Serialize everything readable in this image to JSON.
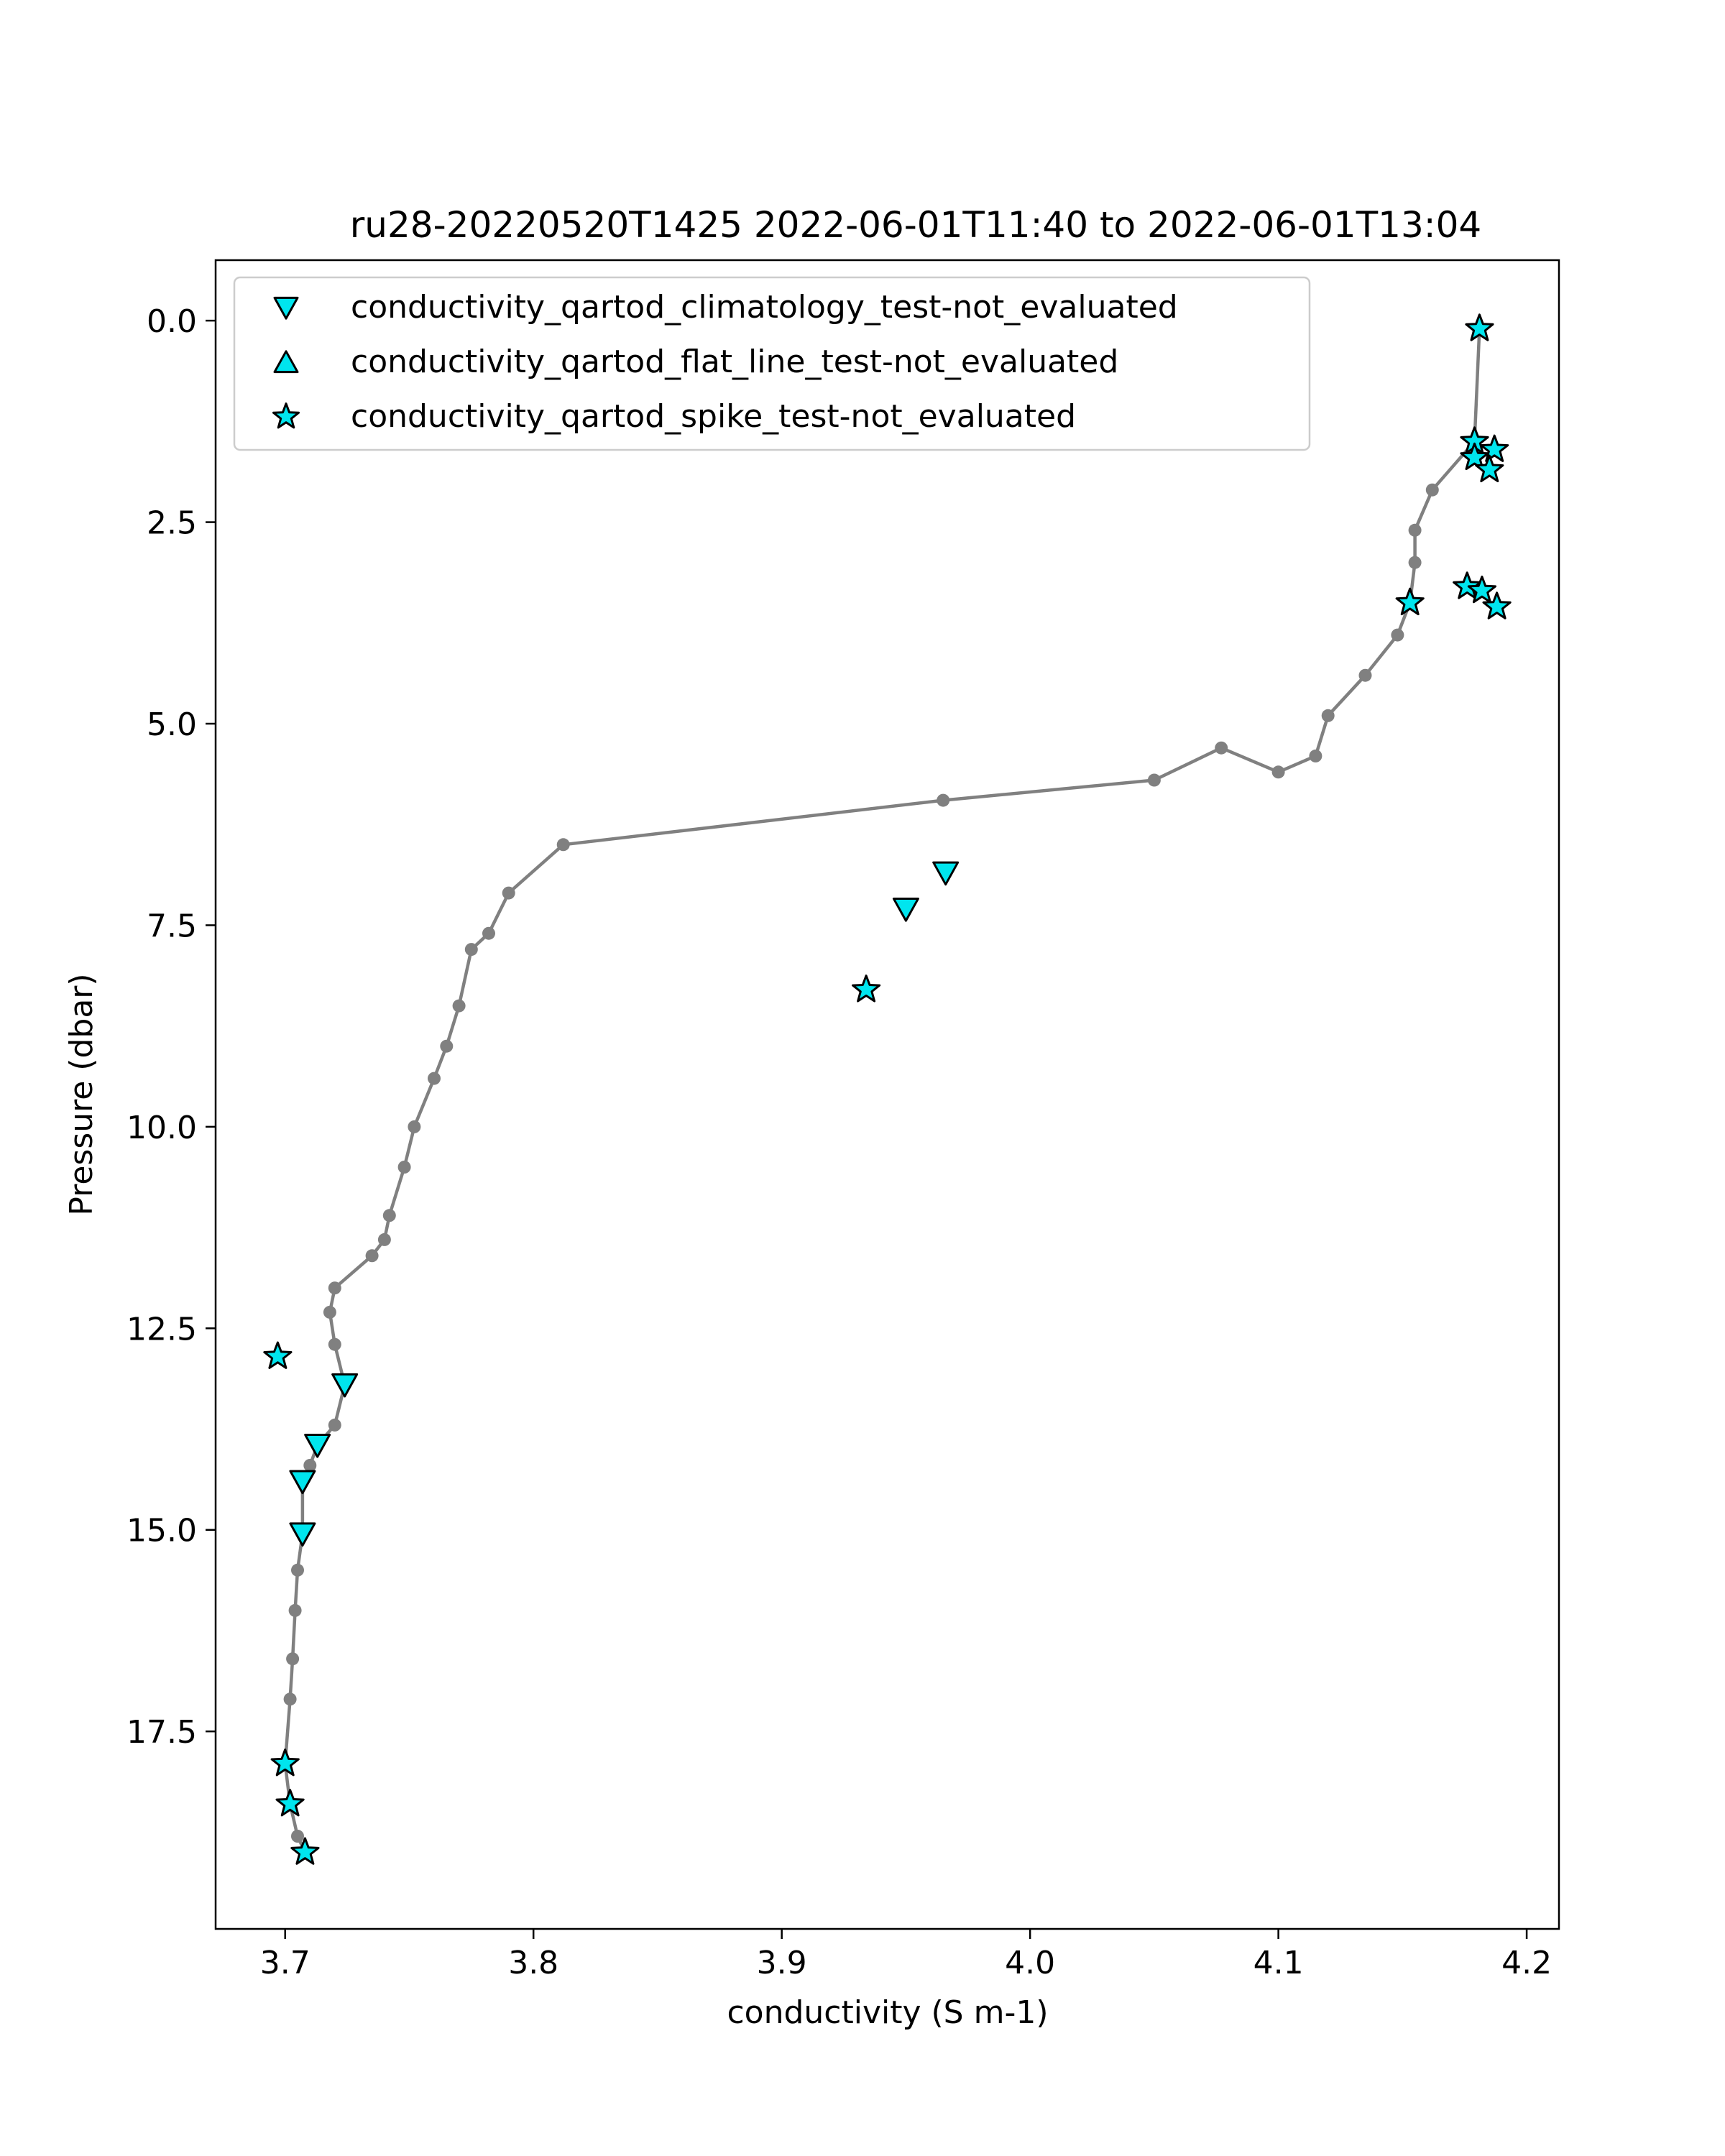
{
  "chart_data": {
    "type": "scatter",
    "title": "ru28-20220520T1425 2022-06-01T11:40 to 2022-06-01T13:04",
    "xlabel": "conductivity (S m-1)",
    "ylabel": "Pressure (dbar)",
    "xlim": [
      3.672,
      4.213
    ],
    "ylim": [
      19.95,
      -0.75
    ],
    "y_inverted": true,
    "xticks": [
      3.7,
      3.8,
      3.9,
      4.0,
      4.1,
      4.2
    ],
    "xtick_labels": [
      "3.7",
      "3.8",
      "3.9",
      "4.0",
      "4.1",
      "4.2"
    ],
    "yticks": [
      0.0,
      2.5,
      5.0,
      7.5,
      10.0,
      12.5,
      15.0,
      17.5
    ],
    "ytick_labels": [
      "0.0",
      "2.5",
      "5.0",
      "7.5",
      "10.0",
      "12.5",
      "15.0",
      "17.5"
    ],
    "grid": false,
    "legend_position": "upper-left",
    "colors": {
      "profile_line": "#808080",
      "flag_marker": "#00e5ee",
      "marker_edge": "#000000"
    },
    "series": [
      {
        "name": "conductivity_qartod_climatology_test-not_evaluated",
        "marker": "triangle-down",
        "points": [
          [
            3.966,
            6.85
          ],
          [
            3.95,
            7.3
          ],
          [
            3.724,
            13.2
          ],
          [
            3.713,
            13.95
          ],
          [
            3.707,
            14.4
          ],
          [
            3.707,
            15.05
          ]
        ]
      },
      {
        "name": "conductivity_qartod_flat_line_test-not_evaluated",
        "marker": "triangle-up",
        "points": []
      },
      {
        "name": "conductivity_qartod_spike_test-not_evaluated",
        "marker": "star",
        "points": [
          [
            4.181,
            0.1
          ],
          [
            4.179,
            1.5
          ],
          [
            4.187,
            1.6
          ],
          [
            4.179,
            1.7
          ],
          [
            4.185,
            1.85
          ],
          [
            4.153,
            3.5
          ],
          [
            4.176,
            3.3
          ],
          [
            4.182,
            3.35
          ],
          [
            4.188,
            3.55
          ],
          [
            3.934,
            8.3
          ],
          [
            3.697,
            12.85
          ],
          [
            3.7,
            17.9
          ],
          [
            3.702,
            18.4
          ],
          [
            3.708,
            19.0
          ]
        ]
      }
    ],
    "profiles": [
      [
        [
          4.181,
          0.1
        ],
        [
          4.179,
          1.5
        ],
        [
          4.162,
          2.1
        ],
        [
          4.155,
          2.6
        ],
        [
          4.155,
          3.0
        ],
        [
          4.153,
          3.5
        ],
        [
          4.148,
          3.9
        ],
        [
          4.135,
          4.4
        ],
        [
          4.12,
          4.9
        ],
        [
          4.115,
          5.4
        ],
        [
          4.1,
          5.6
        ],
        [
          4.077,
          5.3
        ],
        [
          4.05,
          5.7
        ],
        [
          3.965,
          5.95
        ],
        [
          3.812,
          6.5
        ],
        [
          3.79,
          7.1
        ],
        [
          3.782,
          7.6
        ],
        [
          3.775,
          7.8
        ],
        [
          3.77,
          8.5
        ],
        [
          3.765,
          9.0
        ],
        [
          3.76,
          9.4
        ],
        [
          3.752,
          10.0
        ],
        [
          3.748,
          10.5
        ],
        [
          3.742,
          11.1
        ],
        [
          3.74,
          11.4
        ],
        [
          3.735,
          11.6
        ],
        [
          3.72,
          12.0
        ],
        [
          3.718,
          12.3
        ],
        [
          3.72,
          12.7
        ],
        [
          3.724,
          13.2
        ],
        [
          3.72,
          13.7
        ],
        [
          3.713,
          13.95
        ],
        [
          3.71,
          14.2
        ],
        [
          3.707,
          14.4
        ],
        [
          3.707,
          15.05
        ],
        [
          3.705,
          15.5
        ],
        [
          3.704,
          16.0
        ],
        [
          3.703,
          16.6
        ],
        [
          3.702,
          17.1
        ],
        [
          3.7,
          17.9
        ],
        [
          3.702,
          18.4
        ],
        [
          3.705,
          18.8
        ],
        [
          3.708,
          19.0
        ]
      ]
    ]
  }
}
